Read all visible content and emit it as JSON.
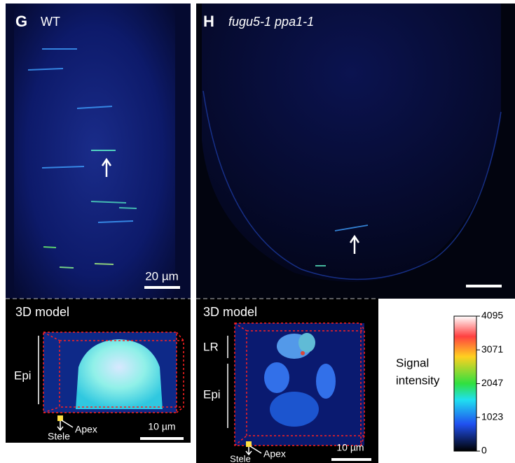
{
  "panels": [
    {
      "letter": "G",
      "label": "WT",
      "scale_bar": "20 µm",
      "model": {
        "title": "3D model",
        "regions": [
          "Epi"
        ],
        "stele": "Stele",
        "apex": "Apex",
        "scale_bar": "10 µm"
      }
    },
    {
      "letter": "H",
      "label": "fugu5-1 ppa1-1",
      "scale_bar": null,
      "model": {
        "title": "3D model",
        "regions": [
          "LR",
          "Epi"
        ],
        "stele": "Stele",
        "apex": "Apex",
        "scale_bar": "10 µm"
      }
    }
  ],
  "colorbar": {
    "title": [
      "Signal",
      "intensity"
    ],
    "ticks": [
      4095,
      3071,
      2047,
      1023,
      0
    ]
  }
}
